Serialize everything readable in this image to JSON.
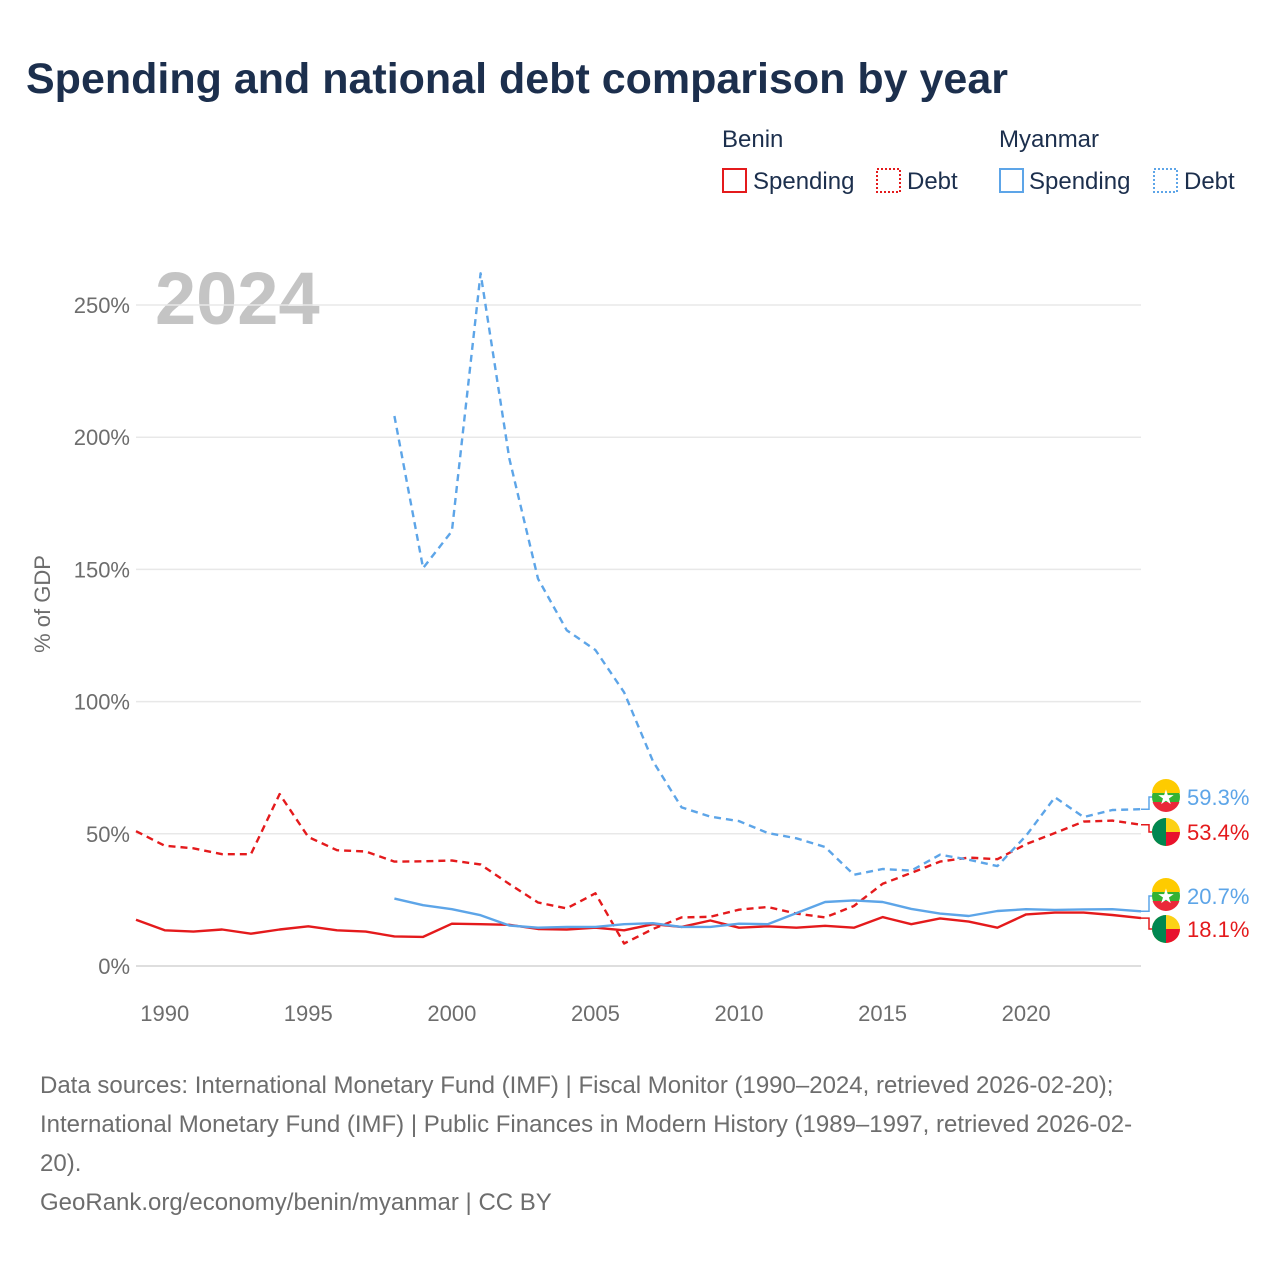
{
  "title": "Spending and national debt comparison by year",
  "year_watermark": "2024",
  "legend": {
    "groups": [
      {
        "country": "Benin",
        "color": "#e41a1c",
        "items": [
          "Spending",
          "Debt"
        ]
      },
      {
        "country": "Myanmar",
        "color": "#5da5e8",
        "items": [
          "Spending",
          "Debt"
        ]
      }
    ]
  },
  "chart_data": {
    "type": "line",
    "title": "Spending and national debt comparison by year",
    "xlabel": "",
    "ylabel": "% of GDP",
    "xlim": [
      1989,
      2024
    ],
    "ylim": [
      0,
      260
    ],
    "x_ticks": [
      1990,
      1995,
      2000,
      2005,
      2010,
      2015,
      2020
    ],
    "x_tick_labels": [
      "1990",
      "1995",
      "2000",
      "2005",
      "2010",
      "2015",
      "2020"
    ],
    "y_ticks": [
      0,
      50,
      100,
      150,
      200,
      250
    ],
    "y_tick_labels": [
      "0%",
      "50%",
      "100%",
      "150%",
      "200%",
      "250%"
    ],
    "grid": true,
    "series": [
      {
        "name": "Benin Spending",
        "country": "Benin",
        "metric": "Spending",
        "color": "#e41a1c",
        "dash": false,
        "x": [
          1989,
          1990,
          1991,
          1992,
          1993,
          1994,
          1995,
          1996,
          1997,
          1998,
          1999,
          2000,
          2001,
          2002,
          2003,
          2004,
          2005,
          2006,
          2007,
          2008,
          2009,
          2010,
          2011,
          2012,
          2013,
          2014,
          2015,
          2016,
          2017,
          2018,
          2019,
          2020,
          2021,
          2022,
          2023,
          2024
        ],
        "values": [
          17.5,
          13.5,
          13,
          13.8,
          12.2,
          13.8,
          15,
          13.5,
          13,
          11.2,
          11,
          16,
          15.8,
          15.6,
          14,
          13.8,
          14.5,
          13.5,
          15.8,
          14.8,
          17.2,
          14.5,
          15,
          14.5,
          15.2,
          14.5,
          18.5,
          15.8,
          18,
          16.8,
          14.5,
          19.5,
          20.2,
          20.2,
          19.3,
          18.1
        ],
        "end_label": "18.1%"
      },
      {
        "name": "Benin Debt",
        "country": "Benin",
        "metric": "Debt",
        "color": "#e41a1c",
        "dash": true,
        "x": [
          1989,
          1990,
          1991,
          1992,
          1993,
          1994,
          1995,
          1996,
          1997,
          1998,
          1999,
          2000,
          2001,
          2002,
          2003,
          2004,
          2005,
          2006,
          2007,
          2008,
          2009,
          2010,
          2011,
          2012,
          2013,
          2014,
          2015,
          2016,
          2017,
          2018,
          2019,
          2020,
          2021,
          2022,
          2023,
          2024
        ],
        "values": [
          51,
          45.5,
          44.5,
          42.3,
          42.3,
          65,
          48.8,
          43.8,
          43.3,
          39.5,
          39.6,
          39.9,
          38.4,
          31,
          24,
          21.8,
          27.5,
          8.5,
          14,
          18.4,
          18.6,
          21.3,
          22.3,
          19.8,
          18.4,
          22.7,
          31.1,
          35.2,
          39.5,
          41,
          40.4,
          46.1,
          50.3,
          54.6,
          55,
          53.4
        ],
        "end_label": "53.4%"
      },
      {
        "name": "Myanmar Spending",
        "country": "Myanmar",
        "metric": "Spending",
        "color": "#5da5e8",
        "dash": false,
        "x": [
          1998,
          1999,
          2000,
          2001,
          2002,
          2003,
          2004,
          2005,
          2006,
          2007,
          2008,
          2009,
          2010,
          2011,
          2012,
          2013,
          2014,
          2015,
          2016,
          2017,
          2018,
          2019,
          2020,
          2021,
          2022,
          2023,
          2024
        ],
        "values": [
          25.5,
          23,
          21.5,
          19.2,
          15.3,
          14.5,
          14.8,
          14.8,
          15.8,
          16.2,
          14.8,
          14.8,
          16,
          15.8,
          20,
          24.2,
          24.8,
          24.2,
          21.6,
          19.8,
          18.9,
          20.8,
          21.5,
          21.2,
          21.4,
          21.5,
          20.7
        ],
        "end_label": "20.7%"
      },
      {
        "name": "Myanmar Debt",
        "country": "Myanmar",
        "metric": "Debt",
        "color": "#5da5e8",
        "dash": true,
        "x": [
          1998,
          1999,
          2000,
          2001,
          2002,
          2003,
          2004,
          2005,
          2006,
          2007,
          2008,
          2009,
          2010,
          2011,
          2012,
          2013,
          2014,
          2015,
          2016,
          2017,
          2018,
          2019,
          2020,
          2021,
          2022,
          2023,
          2024
        ],
        "values": [
          208,
          150.5,
          164.5,
          262,
          192,
          146.5,
          127,
          119.5,
          103.5,
          77.5,
          60,
          56.5,
          54.8,
          50.3,
          48.3,
          45,
          34.5,
          36.7,
          36.1,
          42.1,
          40.2,
          37.8,
          49.3,
          63.8,
          56.3,
          59,
          59.3
        ],
        "end_label": "59.3%"
      }
    ]
  },
  "sources": {
    "line1": "Data sources: International Monetary Fund (IMF) | Fiscal Monitor (1990–2024, retrieved 2026-02-20);",
    "line2": "International Monetary Fund (IMF) | Public Finances in Modern History (1989–1997, retrieved 2026-02-",
    "line3": "20).",
    "credit": "GeoRank.org/economy/benin/myanmar | CC BY"
  }
}
